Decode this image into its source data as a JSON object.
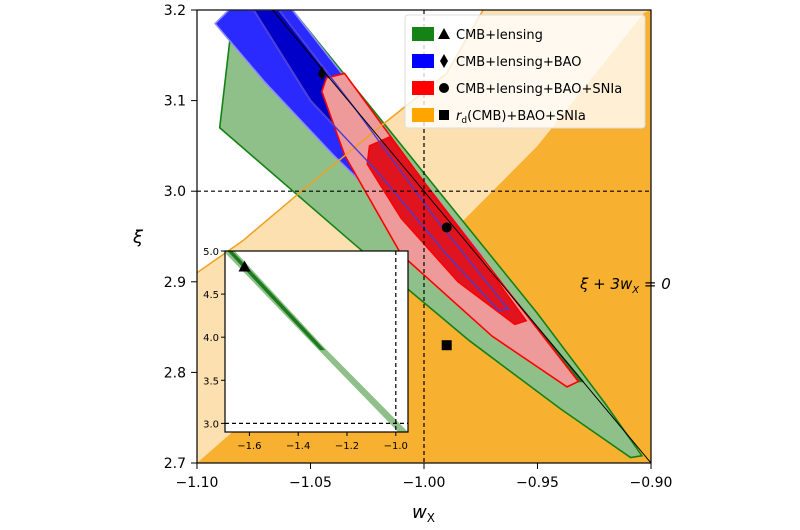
{
  "chart_data": [
    {
      "type": "contour",
      "xlabel": "w",
      "xlabel_sub": "X",
      "ylabel": "ξ",
      "xlim": [
        -1.1,
        -0.9
      ],
      "ylim": [
        2.7,
        3.2
      ],
      "xticks": [
        "−1.10",
        "−1.05",
        "−1.00",
        "−0.95",
        "−0.90"
      ],
      "xtick_values": [
        -1.1,
        -1.05,
        -1.0,
        -0.95,
        -0.9
      ],
      "yticks": [
        "2.7",
        "2.8",
        "2.9",
        "3.0",
        "3.1",
        "3.2"
      ],
      "ytick_values": [
        2.7,
        2.8,
        2.9,
        3.0,
        3.1,
        3.2
      ],
      "grid": false,
      "legend_position": "top-right",
      "reference_lines": {
        "x": -1.0,
        "y": 3.0
      },
      "annotation": {
        "text": "ξ + 3w",
        "sub": "X",
        "tail": " = 0",
        "line": "ξ + 3w_X = 0"
      },
      "series": [
        {
          "name": "CMB+lensing",
          "marker": "triangle",
          "color": "#148214",
          "contours": [
            {
              "level": "2sigma",
              "points": [
                [
                  -1.084,
                  3.2
                ],
                [
                  -1.058,
                  3.2
                ],
                [
                  -1.0,
                  3.02
                ],
                [
                  -0.95,
                  2.865
                ],
                [
                  -0.92,
                  2.765
                ],
                [
                  -0.904,
                  2.708
                ],
                [
                  -0.909,
                  2.706
                ],
                [
                  -0.94,
                  2.76
                ],
                [
                  -0.98,
                  2.835
                ],
                [
                  -1.03,
                  2.94
                ],
                [
                  -1.09,
                  3.07
                ]
              ]
            },
            {
              "level": "1sigma",
              "points": [
                [
                  -1.075,
                  3.2
                ],
                [
                  -1.065,
                  3.2
                ],
                [
                  -1.0,
                  3.0
                ],
                [
                  -0.95,
                  2.85
                ],
                [
                  -0.93,
                  2.79
                ],
                [
                  -0.935,
                  2.79
                ],
                [
                  -0.97,
                  2.88
                ],
                [
                  -1.04,
                  3.08
                ]
              ]
            }
          ]
        },
        {
          "name": "CMB+lensing+BAO",
          "marker": "diamond",
          "color": "#0000ff",
          "best_fit": [
            -1.045,
            3.13
          ],
          "contours": [
            {
              "level": "2sigma",
              "points": [
                [
                  -1.086,
                  3.2
                ],
                [
                  -1.058,
                  3.2
                ],
                [
                  -1.03,
                  3.11
                ],
                [
                  -1.0,
                  3.01
                ],
                [
                  -0.975,
                  2.93
                ],
                [
                  -0.962,
                  2.87
                ],
                [
                  -0.968,
                  2.868
                ],
                [
                  -0.985,
                  2.915
                ],
                [
                  -1.005,
                  2.955
                ],
                [
                  -1.04,
                  3.04
                ],
                [
                  -1.07,
                  3.12
                ],
                [
                  -1.092,
                  3.185
                ]
              ]
            },
            {
              "level": "1sigma",
              "points": [
                [
                  -1.075,
                  3.2
                ],
                [
                  -1.064,
                  3.2
                ],
                [
                  -1.03,
                  3.09
                ],
                [
                  -0.995,
                  2.97
                ],
                [
                  -0.963,
                  2.87
                ],
                [
                  -0.967,
                  2.868
                ],
                [
                  -0.99,
                  2.93
                ],
                [
                  -1.02,
                  3.02
                ],
                [
                  -1.05,
                  3.1
                ]
              ]
            }
          ]
        },
        {
          "name": "CMB+lensing+BAO+SNIa",
          "marker": "circle",
          "color": "#ff0000",
          "best_fit": [
            -0.99,
            2.96
          ],
          "contours": [
            {
              "level": "2sigma",
              "points": [
                [
                  -1.043,
                  3.125
                ],
                [
                  -1.035,
                  3.13
                ],
                [
                  -1.0,
                  3.01
                ],
                [
                  -0.96,
                  2.88
                ],
                [
                  -0.932,
                  2.79
                ],
                [
                  -0.937,
                  2.784
                ],
                [
                  -0.97,
                  2.84
                ],
                [
                  -1.01,
                  2.93
                ],
                [
                  -1.035,
                  3.04
                ],
                [
                  -1.045,
                  3.11
                ]
              ]
            },
            {
              "level": "1sigma",
              "points": [
                [
                  -1.024,
                  3.05
                ],
                [
                  -1.015,
                  3.06
                ],
                [
                  -0.985,
                  2.96
                ],
                [
                  -0.955,
                  2.857
                ],
                [
                  -0.96,
                  2.853
                ],
                [
                  -0.985,
                  2.9
                ],
                [
                  -1.01,
                  2.97
                ],
                [
                  -1.025,
                  3.03
                ]
              ]
            }
          ]
        },
        {
          "name": "CMB",
          "name_prefix": "r",
          "name_sub": "d",
          "name_rest": "(CMB)+BAO+SNIa",
          "marker": "square",
          "color": "#ffa500",
          "best_fit": [
            -0.99,
            2.83
          ],
          "contours": [
            {
              "level": "2sigma",
              "points": [
                [
                  -1.1,
                  2.91
                ],
                [
                  -1.08,
                  2.945
                ],
                [
                  -1.054,
                  3.0
                ],
                [
                  -1.02,
                  3.07
                ],
                [
                  -0.99,
                  3.13
                ],
                [
                  -0.974,
                  3.2
                ],
                [
                  -0.9,
                  3.2
                ],
                [
                  -0.9,
                  2.7
                ],
                [
                  -1.1,
                  2.7
                ]
              ]
            },
            {
              "level": "1sigma",
              "points": [
                [
                  -1.1,
                  2.7
                ],
                [
                  -1.05,
                  2.81
                ],
                [
                  -1.0,
                  2.924
                ],
                [
                  -0.95,
                  3.05
                ],
                [
                  -0.903,
                  3.197
                ],
                [
                  -0.9,
                  3.2
                ],
                [
                  -0.9,
                  2.7
                ]
              ]
            }
          ]
        }
      ]
    },
    {
      "type": "contour",
      "inset": true,
      "xlim": [
        -1.7,
        -0.95
      ],
      "ylim": [
        2.9,
        5.0
      ],
      "xticks": [
        "−1.6",
        "−1.4",
        "−1.2",
        "−1.0"
      ],
      "xtick_values": [
        -1.6,
        -1.4,
        -1.2,
        -1.0
      ],
      "yticks": [
        "3.0",
        "3.5",
        "4.0",
        "4.5",
        "5.0"
      ],
      "ytick_values": [
        3.0,
        3.5,
        4.0,
        4.5,
        5.0
      ],
      "reference_lines": {
        "x": -1.0,
        "y": 3.0
      },
      "series": [
        {
          "name": "CMB+lensing",
          "marker": "triangle",
          "color": "#148214",
          "best_fit": [
            -1.62,
            4.82
          ],
          "contours": [
            {
              "level": "2sigma",
              "points": [
                [
                  -1.7,
                  5.0
                ],
                [
                  -1.66,
                  5.0
                ],
                [
                  -1.3,
                  3.9
                ],
                [
                  -0.95,
                  2.9
                ],
                [
                  -0.99,
                  2.9
                ],
                [
                  -1.35,
                  3.95
                ],
                [
                  -1.7,
                  4.98
                ]
              ]
            },
            {
              "level": "1sigma",
              "points": [
                [
                  -1.69,
                  5.0
                ],
                [
                  -1.67,
                  5.0
                ],
                [
                  -1.29,
                  3.85
                ],
                [
                  -1.31,
                  3.85
                ]
              ]
            }
          ]
        }
      ]
    }
  ]
}
